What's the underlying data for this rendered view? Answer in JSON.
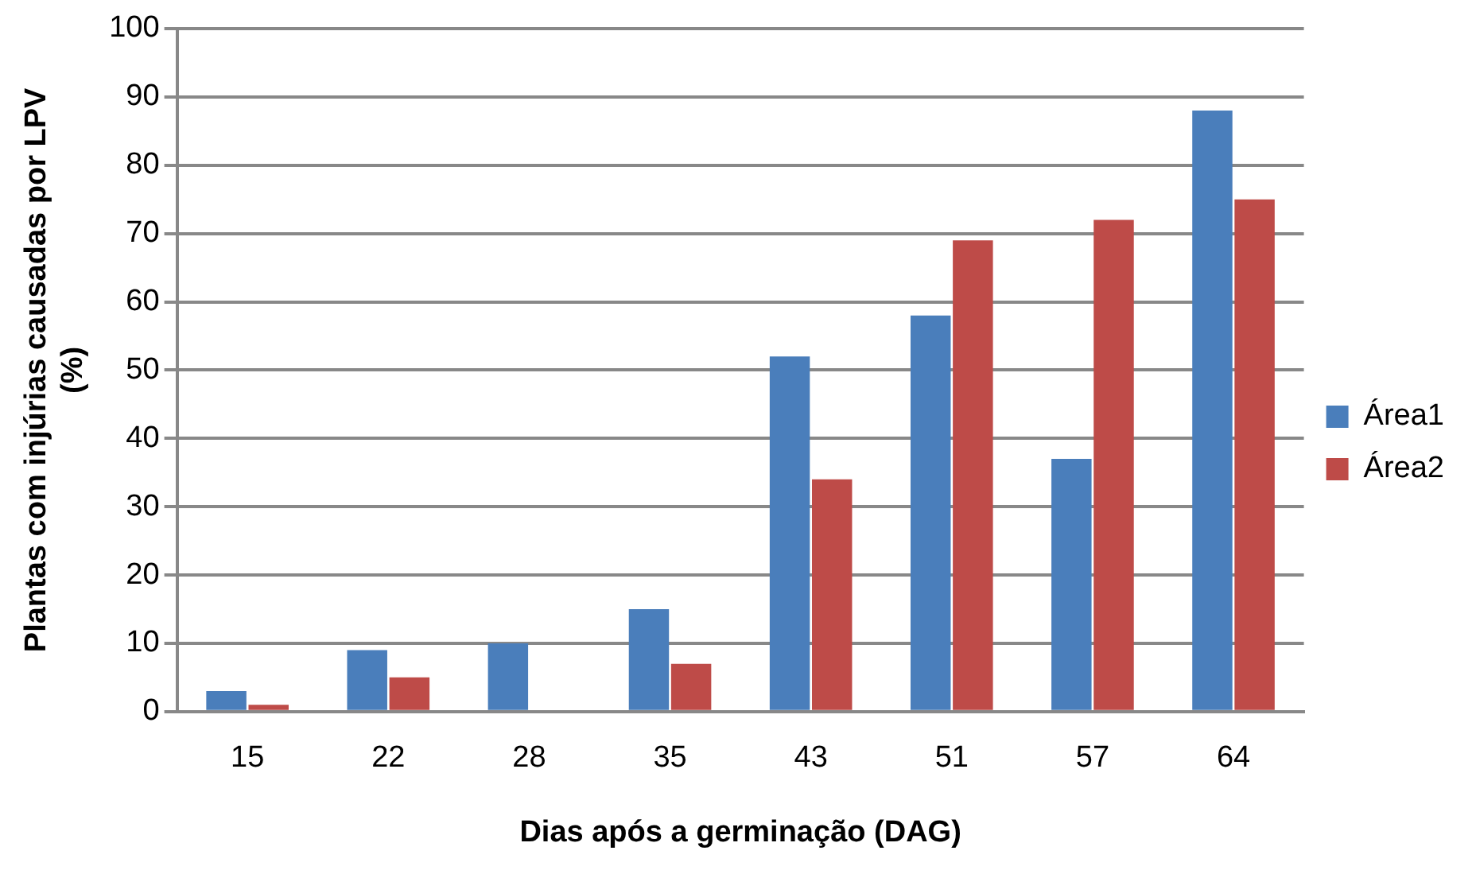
{
  "chart_data": {
    "type": "bar",
    "xlabel": "Dias após a germinação (DAG)",
    "ylabel": "Plantas com injúrias causadas por LPV (%)",
    "categories": [
      "15",
      "22",
      "28",
      "35",
      "43",
      "51",
      "57",
      "64"
    ],
    "series": [
      {
        "name": "Área1",
        "color": "#4a7ebb",
        "values": [
          3,
          9,
          10,
          15,
          52,
          58,
          37,
          88
        ]
      },
      {
        "name": "Área2",
        "color": "#be4b48",
        "values": [
          1,
          5,
          0,
          7,
          34,
          69,
          72,
          75
        ]
      }
    ],
    "ylim": [
      0,
      100
    ],
    "yticks": [
      0,
      10,
      20,
      30,
      40,
      50,
      60,
      70,
      80,
      90,
      100
    ],
    "grid": "y",
    "legend": "right"
  }
}
